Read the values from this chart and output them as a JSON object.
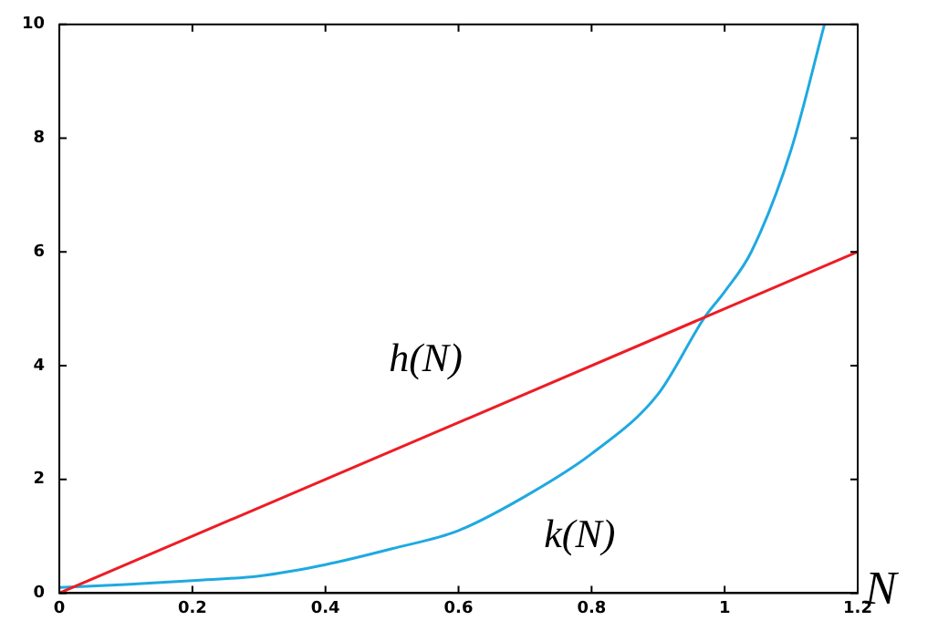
{
  "chart_data": {
    "type": "line",
    "xlabel": "N",
    "xlim": [
      0,
      1.2
    ],
    "xticks": [
      0,
      0.2,
      0.4,
      0.6,
      0.8,
      1,
      1.2
    ],
    "ylim": [
      0,
      10
    ],
    "yticks": [
      0,
      2,
      4,
      6,
      8,
      10
    ],
    "grid": false,
    "legend": false,
    "marker": "none",
    "line_style": "solid",
    "series": [
      {
        "name": "h(N)",
        "color": "#ee1c25",
        "x": [
          0,
          1.2
        ],
        "values": [
          0,
          6
        ]
      },
      {
        "name": "k(N)",
        "color": "#1fa9e1",
        "x": [
          0,
          0.1,
          0.2,
          0.3,
          0.4,
          0.5,
          0.6,
          0.7,
          0.8,
          0.9,
          0.97,
          1.0,
          1.04,
          1.1,
          1.15
        ],
        "values": [
          0.1,
          0.15,
          0.22,
          0.3,
          0.5,
          0.78,
          1.1,
          1.7,
          2.45,
          3.5,
          4.85,
          5.3,
          6,
          7.8,
          10
        ]
      }
    ]
  }
}
